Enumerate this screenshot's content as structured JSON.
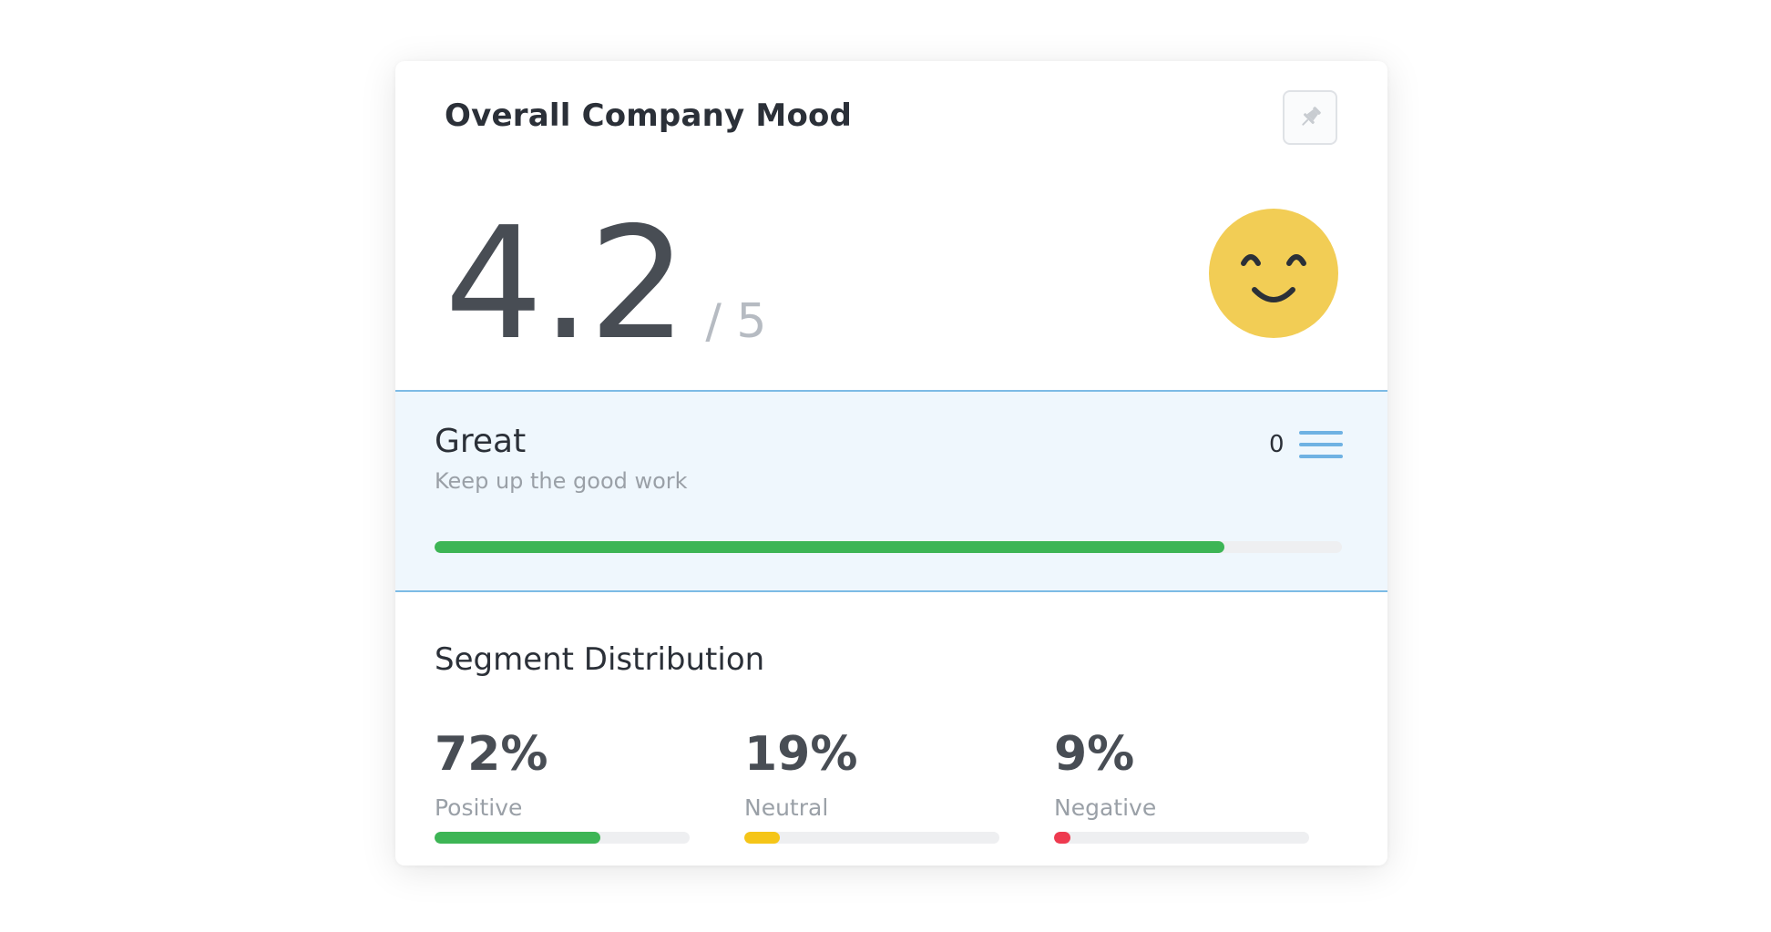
{
  "card": {
    "title": "Overall Company Mood",
    "pin_icon": "pin-icon"
  },
  "score": {
    "value": "4.2",
    "max": "/ 5",
    "mood_icon": "smiley-face-icon",
    "mood_color": "#f2cd55"
  },
  "rating": {
    "label": "Great",
    "subtitle": "Keep up the good work",
    "count": "0",
    "menu_icon": "hamburger-menu-icon",
    "progress_fraction": 0.87,
    "progress_color": "#3db555",
    "accent_color": "#7dbbe5"
  },
  "segments": {
    "title": "Segment Distribution",
    "items": [
      {
        "percent": "72%",
        "label": "Positive",
        "fraction": 0.65,
        "color": "#3db555"
      },
      {
        "percent": "19%",
        "label": "Neutral",
        "fraction": 0.14,
        "color": "#f5c518"
      },
      {
        "percent": "9%",
        "label": "Negative",
        "fraction": 0.065,
        "color": "#ee3a4f"
      }
    ]
  }
}
